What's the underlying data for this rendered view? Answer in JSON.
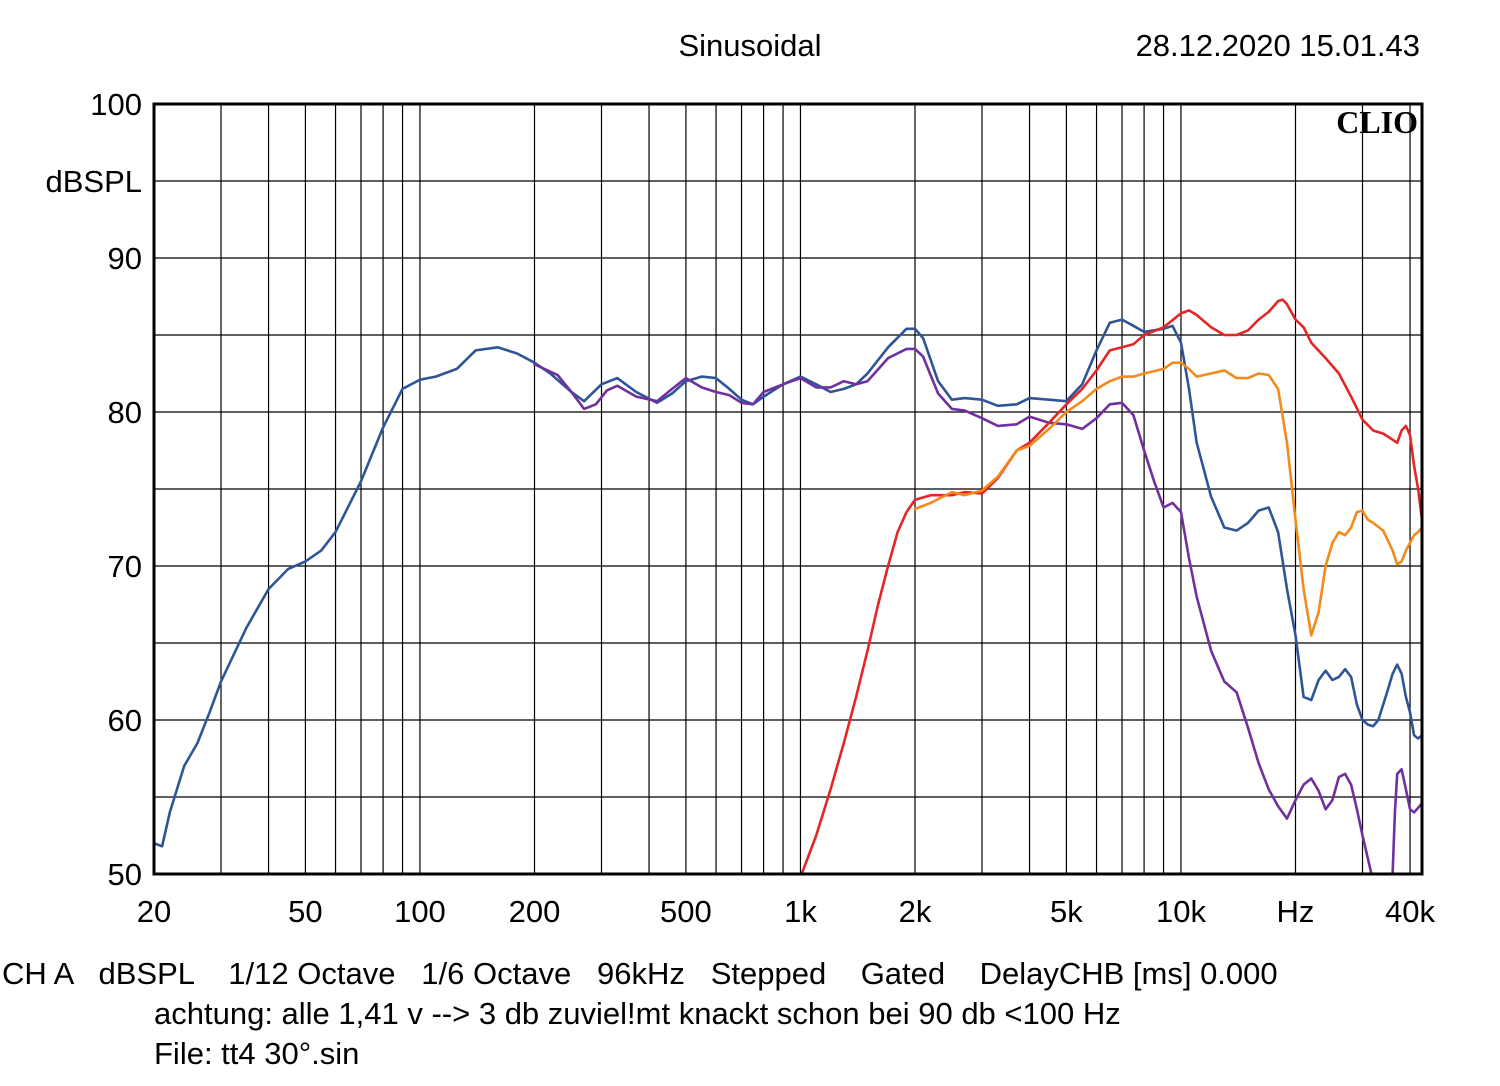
{
  "header": {
    "title": "Sinusoidal",
    "timestamp": "28.12.2020 15.01.43",
    "brand": "CLIO"
  },
  "footer": {
    "line1": "CH A   dBSPL    1/12 Octave   1/6 Octave   96kHz   Stepped    Gated    DelayCHB [ms] 0.000",
    "line2": "achtung: alle 1,41 v --> 3 db zuviel!mt knackt schon bei 90 db <100 Hz",
    "line3": "File: tt4 30°.sin"
  },
  "colors": {
    "blue": "#2f5597",
    "purple": "#7030a0",
    "red": "#e32626",
    "orange": "#f28a1c",
    "grid": "#000000"
  },
  "chart_data": {
    "type": "line",
    "x_scale": "log",
    "xlim": [
      20,
      43000
    ],
    "ylim": [
      50,
      100
    ],
    "ylabel": "dBSPL",
    "xlabel": "Hz",
    "grid": true,
    "y_ticks": [
      {
        "value": 100,
        "label": "100"
      },
      {
        "value": 90,
        "label": "90"
      },
      {
        "value": 80,
        "label": "80"
      },
      {
        "value": 70,
        "label": "70"
      },
      {
        "value": 60,
        "label": "60"
      },
      {
        "value": 50,
        "label": "50"
      }
    ],
    "x_ticks": [
      {
        "value": 20,
        "label": "20"
      },
      {
        "value": 50,
        "label": "50"
      },
      {
        "value": 100,
        "label": "100"
      },
      {
        "value": 200,
        "label": "200"
      },
      {
        "value": 500,
        "label": "500"
      },
      {
        "value": 1000,
        "label": "1k"
      },
      {
        "value": 2000,
        "label": "2k"
      },
      {
        "value": 5000,
        "label": "5k"
      },
      {
        "value": 10000,
        "label": "10k"
      },
      {
        "value": 20000,
        "label": "Hz"
      },
      {
        "value": 40000,
        "label": "40k"
      }
    ],
    "series": [
      {
        "color": "#2f5597",
        "points": [
          [
            20,
            52
          ],
          [
            21,
            51.8
          ],
          [
            22,
            54
          ],
          [
            24,
            57
          ],
          [
            26,
            58.5
          ],
          [
            28,
            60.5
          ],
          [
            30,
            62.5
          ],
          [
            35,
            66
          ],
          [
            40,
            68.5
          ],
          [
            45,
            69.8
          ],
          [
            50,
            70.3
          ],
          [
            55,
            71
          ],
          [
            60,
            72.2
          ],
          [
            70,
            75.5
          ],
          [
            80,
            79
          ],
          [
            90,
            81.5
          ],
          [
            100,
            82.1
          ],
          [
            110,
            82.3
          ],
          [
            125,
            82.8
          ],
          [
            140,
            84
          ],
          [
            160,
            84.2
          ],
          [
            180,
            83.8
          ],
          [
            200,
            83.2
          ],
          [
            220,
            82.5
          ],
          [
            250,
            81.3
          ],
          [
            270,
            80.7
          ],
          [
            300,
            81.8
          ],
          [
            330,
            82.2
          ],
          [
            370,
            81.3
          ],
          [
            420,
            80.6
          ],
          [
            460,
            81.2
          ],
          [
            500,
            82
          ],
          [
            550,
            82.3
          ],
          [
            600,
            82.2
          ],
          [
            650,
            81.5
          ],
          [
            700,
            80.8
          ],
          [
            750,
            80.5
          ],
          [
            800,
            81
          ],
          [
            900,
            81.8
          ],
          [
            1000,
            82.3
          ],
          [
            1100,
            81.8
          ],
          [
            1200,
            81.3
          ],
          [
            1300,
            81.5
          ],
          [
            1400,
            81.8
          ],
          [
            1500,
            82.5
          ],
          [
            1700,
            84.2
          ],
          [
            1900,
            85.4
          ],
          [
            2000,
            85.4
          ],
          [
            2100,
            84.8
          ],
          [
            2300,
            82
          ],
          [
            2500,
            80.8
          ],
          [
            2700,
            80.9
          ],
          [
            3000,
            80.8
          ],
          [
            3300,
            80.4
          ],
          [
            3700,
            80.5
          ],
          [
            4000,
            80.9
          ],
          [
            4500,
            80.8
          ],
          [
            5000,
            80.7
          ],
          [
            5500,
            81.8
          ],
          [
            6000,
            84
          ],
          [
            6500,
            85.8
          ],
          [
            7000,
            86
          ],
          [
            7500,
            85.6
          ],
          [
            8000,
            85.2
          ],
          [
            9000,
            85.4
          ],
          [
            9500,
            85.6
          ],
          [
            10000,
            84.5
          ],
          [
            10500,
            81.5
          ],
          [
            11000,
            78
          ],
          [
            12000,
            74.5
          ],
          [
            13000,
            72.5
          ],
          [
            14000,
            72.3
          ],
          [
            15000,
            72.8
          ],
          [
            16000,
            73.6
          ],
          [
            17000,
            73.8
          ],
          [
            18000,
            72.2
          ],
          [
            19000,
            68.5
          ],
          [
            20000,
            65.5
          ],
          [
            21000,
            61.5
          ],
          [
            22000,
            61.3
          ],
          [
            23000,
            62.6
          ],
          [
            24000,
            63.2
          ],
          [
            25000,
            62.6
          ],
          [
            26000,
            62.8
          ],
          [
            27000,
            63.3
          ],
          [
            28000,
            62.8
          ],
          [
            29000,
            61
          ],
          [
            30000,
            60
          ],
          [
            31000,
            59.7
          ],
          [
            32000,
            59.6
          ],
          [
            33000,
            60
          ],
          [
            34000,
            61
          ],
          [
            35000,
            62
          ],
          [
            36000,
            63
          ],
          [
            37000,
            63.6
          ],
          [
            38000,
            63
          ],
          [
            39000,
            61.5
          ],
          [
            40000,
            60.5
          ],
          [
            41000,
            59
          ],
          [
            42000,
            58.8
          ],
          [
            43000,
            59
          ]
        ]
      },
      {
        "color": "#7030a0",
        "points": [
          [
            200,
            83.1
          ],
          [
            230,
            82.4
          ],
          [
            250,
            81.3
          ],
          [
            270,
            80.2
          ],
          [
            290,
            80.5
          ],
          [
            310,
            81.4
          ],
          [
            330,
            81.7
          ],
          [
            370,
            81
          ],
          [
            420,
            80.7
          ],
          [
            460,
            81.5
          ],
          [
            500,
            82.2
          ],
          [
            550,
            81.6
          ],
          [
            600,
            81.3
          ],
          [
            650,
            81.1
          ],
          [
            700,
            80.6
          ],
          [
            750,
            80.5
          ],
          [
            800,
            81.3
          ],
          [
            900,
            81.8
          ],
          [
            1000,
            82.2
          ],
          [
            1100,
            81.6
          ],
          [
            1200,
            81.6
          ],
          [
            1300,
            82
          ],
          [
            1400,
            81.8
          ],
          [
            1500,
            82
          ],
          [
            1700,
            83.5
          ],
          [
            1900,
            84.1
          ],
          [
            2000,
            84.1
          ],
          [
            2100,
            83.6
          ],
          [
            2300,
            81.2
          ],
          [
            2500,
            80.2
          ],
          [
            2700,
            80.1
          ],
          [
            3000,
            79.6
          ],
          [
            3300,
            79.1
          ],
          [
            3700,
            79.2
          ],
          [
            4000,
            79.7
          ],
          [
            4500,
            79.3
          ],
          [
            5000,
            79.2
          ],
          [
            5500,
            78.9
          ],
          [
            6000,
            79.6
          ],
          [
            6500,
            80.5
          ],
          [
            7000,
            80.6
          ],
          [
            7500,
            79.8
          ],
          [
            8000,
            77.5
          ],
          [
            8500,
            75.5
          ],
          [
            9000,
            73.8
          ],
          [
            9500,
            74.1
          ],
          [
            10000,
            73.5
          ],
          [
            10500,
            70.5
          ],
          [
            11000,
            68
          ],
          [
            12000,
            64.5
          ],
          [
            13000,
            62.5
          ],
          [
            14000,
            61.8
          ],
          [
            15000,
            59.5
          ],
          [
            16000,
            57.2
          ],
          [
            17000,
            55.5
          ],
          [
            18000,
            54.4
          ],
          [
            19000,
            53.6
          ],
          [
            20000,
            54.8
          ],
          [
            21000,
            55.8
          ],
          [
            22000,
            56.2
          ],
          [
            23000,
            55.4
          ],
          [
            24000,
            54.2
          ],
          [
            25000,
            54.8
          ],
          [
            26000,
            56.3
          ],
          [
            27000,
            56.5
          ],
          [
            28000,
            55.8
          ],
          [
            29000,
            54.2
          ],
          [
            30000,
            52.5
          ],
          [
            31000,
            51
          ],
          [
            32000,
            49.5
          ]
        ]
      },
      {
        "color": "#7030a0",
        "points": [
          [
            36000,
            50
          ],
          [
            36500,
            54
          ],
          [
            37000,
            56.5
          ],
          [
            38000,
            56.8
          ],
          [
            39000,
            55.5
          ],
          [
            40000,
            54.2
          ],
          [
            41000,
            54
          ],
          [
            42000,
            54.3
          ],
          [
            43000,
            54.6
          ]
        ]
      },
      {
        "color": "#e32626",
        "points": [
          [
            1000,
            49.8
          ],
          [
            1100,
            52.5
          ],
          [
            1200,
            55.5
          ],
          [
            1300,
            58.5
          ],
          [
            1400,
            61.5
          ],
          [
            1500,
            64.5
          ],
          [
            1600,
            67.5
          ],
          [
            1700,
            70
          ],
          [
            1800,
            72.2
          ],
          [
            1900,
            73.5
          ],
          [
            2000,
            74.3
          ],
          [
            2200,
            74.6
          ],
          [
            2500,
            74.6
          ],
          [
            2700,
            74.8
          ],
          [
            3000,
            74.7
          ],
          [
            3300,
            75.7
          ],
          [
            3700,
            77.5
          ],
          [
            4000,
            78
          ],
          [
            4500,
            79.3
          ],
          [
            5000,
            80.5
          ],
          [
            5500,
            81.5
          ],
          [
            6000,
            82.7
          ],
          [
            6500,
            84
          ],
          [
            7000,
            84.2
          ],
          [
            7500,
            84.4
          ],
          [
            8000,
            85
          ],
          [
            9000,
            85.5
          ],
          [
            10000,
            86.4
          ],
          [
            10500,
            86.6
          ],
          [
            11000,
            86.3
          ],
          [
            12000,
            85.5
          ],
          [
            13000,
            85
          ],
          [
            14000,
            85
          ],
          [
            15000,
            85.3
          ],
          [
            16000,
            86
          ],
          [
            17000,
            86.5
          ],
          [
            18000,
            87.2
          ],
          [
            18500,
            87.3
          ],
          [
            19000,
            87
          ],
          [
            20000,
            86
          ],
          [
            21000,
            85.5
          ],
          [
            22000,
            84.5
          ],
          [
            24000,
            83.5
          ],
          [
            26000,
            82.5
          ],
          [
            28000,
            81
          ],
          [
            30000,
            79.5
          ],
          [
            32000,
            78.8
          ],
          [
            34000,
            78.6
          ],
          [
            36000,
            78.2
          ],
          [
            37000,
            78
          ],
          [
            38000,
            78.8
          ],
          [
            39000,
            79.1
          ],
          [
            40000,
            78.5
          ],
          [
            41000,
            76.5
          ],
          [
            42000,
            75
          ],
          [
            43000,
            73
          ]
        ]
      },
      {
        "color": "#f28a1c",
        "points": [
          [
            2000,
            73.7
          ],
          [
            2200,
            74.1
          ],
          [
            2500,
            74.8
          ],
          [
            2700,
            74.6
          ],
          [
            3000,
            74.9
          ],
          [
            3300,
            75.8
          ],
          [
            3700,
            77.5
          ],
          [
            4000,
            77.8
          ],
          [
            4500,
            78.9
          ],
          [
            5000,
            80
          ],
          [
            5500,
            80.7
          ],
          [
            6000,
            81.5
          ],
          [
            6500,
            82
          ],
          [
            7000,
            82.3
          ],
          [
            7500,
            82.3
          ],
          [
            8000,
            82.5
          ],
          [
            9000,
            82.8
          ],
          [
            9500,
            83.2
          ],
          [
            10000,
            83.2
          ],
          [
            10500,
            82.8
          ],
          [
            11000,
            82.3
          ],
          [
            12000,
            82.5
          ],
          [
            13000,
            82.7
          ],
          [
            14000,
            82.2
          ],
          [
            15000,
            82.2
          ],
          [
            16000,
            82.5
          ],
          [
            17000,
            82.4
          ],
          [
            18000,
            81.5
          ],
          [
            19000,
            78
          ],
          [
            20000,
            73
          ],
          [
            21000,
            68.5
          ],
          [
            22000,
            65.5
          ],
          [
            23000,
            67
          ],
          [
            24000,
            70
          ],
          [
            25000,
            71.5
          ],
          [
            26000,
            72.2
          ],
          [
            27000,
            72
          ],
          [
            28000,
            72.5
          ],
          [
            29000,
            73.5
          ],
          [
            30000,
            73.6
          ],
          [
            31000,
            73
          ],
          [
            32000,
            72.8
          ],
          [
            34000,
            72.3
          ],
          [
            36000,
            71
          ],
          [
            37000,
            70.1
          ],
          [
            38000,
            70.3
          ],
          [
            39000,
            71
          ],
          [
            40000,
            71.5
          ],
          [
            41000,
            72
          ],
          [
            42000,
            72.2
          ],
          [
            43000,
            72.5
          ]
        ]
      }
    ]
  }
}
